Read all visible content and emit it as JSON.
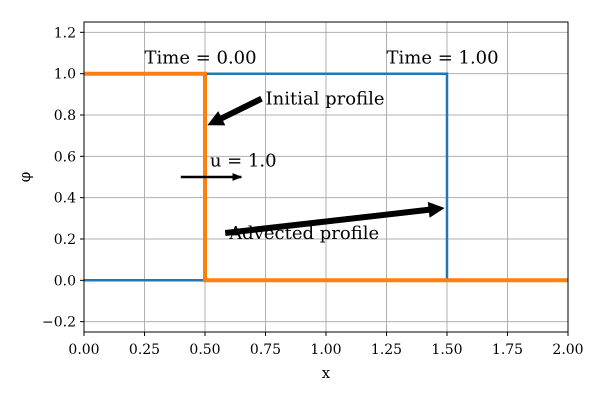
{
  "chart_data": {
    "type": "line",
    "title": "",
    "xlabel": "x",
    "ylabel": "φ",
    "xlim": [
      0.0,
      2.0
    ],
    "ylim": [
      -0.25,
      1.25
    ],
    "grid": true,
    "x_ticks": [
      0.0,
      0.25,
      0.5,
      0.75,
      1.0,
      1.25,
      1.5,
      1.75,
      2.0
    ],
    "x_tick_labels": [
      "0.00",
      "0.25",
      "0.50",
      "0.75",
      "1.00",
      "1.25",
      "1.50",
      "1.75",
      "2.00"
    ],
    "y_ticks": [
      -0.2,
      0.0,
      0.2,
      0.4,
      0.6,
      0.8,
      1.0,
      1.2
    ],
    "y_tick_labels": [
      "−0.2",
      "0.0",
      "0.2",
      "0.4",
      "0.6",
      "0.8",
      "1.0",
      "1.2"
    ],
    "series": [
      {
        "color": "#1f77b4",
        "x": [
          0.0,
          0.5,
          0.5,
          1.5,
          1.5,
          2.0
        ],
        "y": [
          0.0,
          0.0,
          1.0,
          1.0,
          0.0,
          0.0
        ]
      },
      {
        "color": "#ff7f0e",
        "x": [
          0.0,
          0.5,
          0.5,
          2.0
        ],
        "y": [
          1.0,
          1.0,
          0.0,
          0.0
        ]
      }
    ],
    "annotations": [
      {
        "text": "Time = 0.00",
        "x": 0.25,
        "y": 1.05
      },
      {
        "text": "Time = 1.00",
        "x": 1.25,
        "y": 1.05
      },
      {
        "text": "Initial profile",
        "x": 0.75,
        "y": 0.85,
        "arrow_to": [
          0.51,
          0.75
        ]
      },
      {
        "text": "u = 1.0",
        "x": 0.52,
        "y": 0.55
      },
      {
        "text": "Advected profile",
        "x": 0.6,
        "y": 0.2,
        "arrow_to": [
          1.49,
          0.35
        ]
      }
    ],
    "velocity_arrow": {
      "from": [
        0.4,
        0.5
      ],
      "to": [
        0.65,
        0.5
      ]
    }
  }
}
